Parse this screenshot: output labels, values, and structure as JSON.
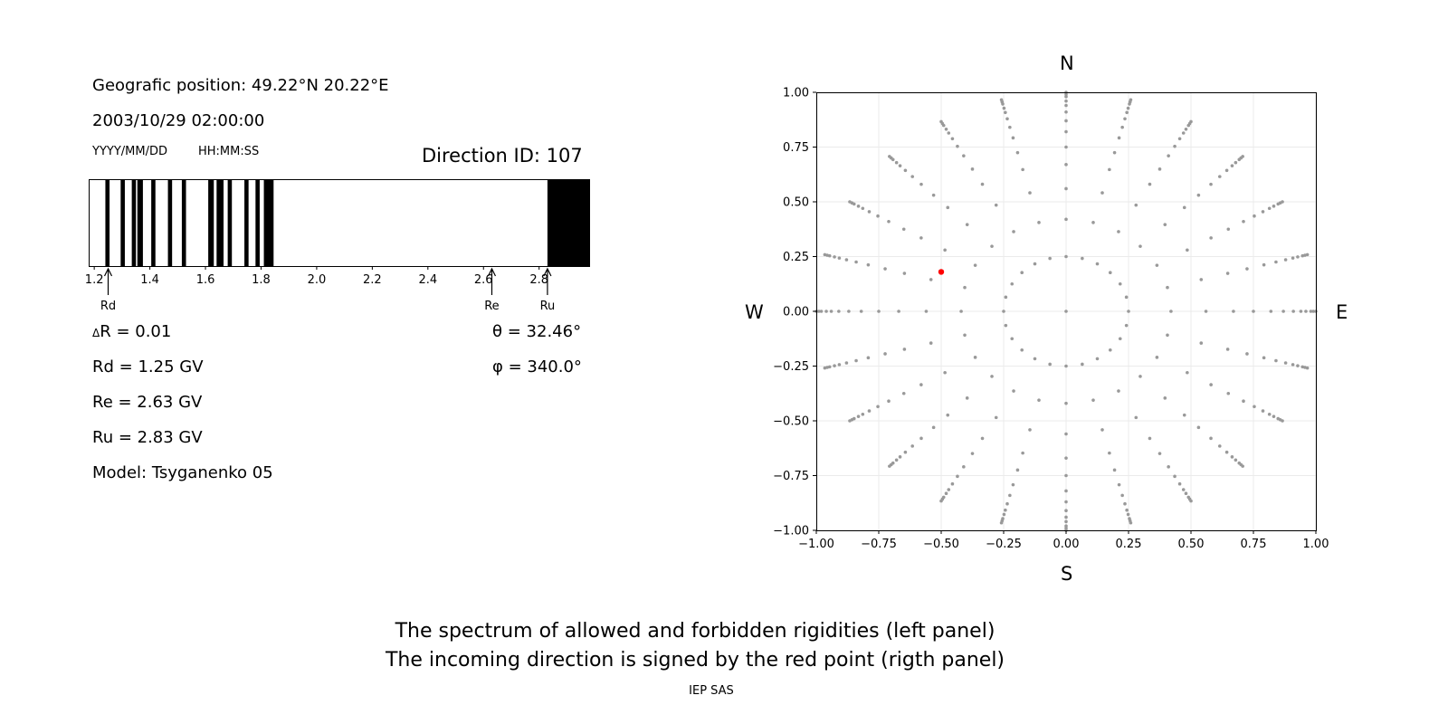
{
  "left_panel": {
    "position_line": "Geografic position: 49.22°N 20.22°E",
    "datetime": "2003/10/29 02:00:00",
    "date_format": "YYYY/MM/DD",
    "time_format": "HH:MM:SS",
    "direction_id": "Direction ID: 107",
    "delta_r": "R = 0.01",
    "delta_symbol": "Δ",
    "rd": "Rd = 1.25 GV",
    "re": "Re = 2.63 GV",
    "ru": "Ru = 2.83 GV",
    "model": "Model: Tsyganenko 05",
    "theta": "θ = 32.46°",
    "phi": "φ = 340.0°",
    "markers": {
      "rd": "Rd",
      "re": "Re",
      "ru": "Ru"
    }
  },
  "right_panel": {
    "compass": {
      "n": "N",
      "s": "S",
      "e": "E",
      "w": "W"
    }
  },
  "footer": {
    "line1": "The spectrum of allowed and forbidden rigidities (left panel)",
    "line2": "The incoming direction is signed by the red point (rigth panel)",
    "credit": "IEP SAS"
  },
  "chart_data": [
    {
      "type": "bar",
      "description_role": "rigidity spectrum (black = forbidden, white = allowed)",
      "xlim": [
        1.18,
        2.98
      ],
      "xticks": [
        1.2,
        1.4,
        1.6,
        1.8,
        2.0,
        2.2,
        2.4,
        2.6,
        2.8
      ],
      "forbidden_bands": [
        [
          1.24,
          1.255
        ],
        [
          1.295,
          1.31
        ],
        [
          1.335,
          1.35
        ],
        [
          1.355,
          1.375
        ],
        [
          1.405,
          1.42
        ],
        [
          1.465,
          1.48
        ],
        [
          1.515,
          1.53
        ],
        [
          1.61,
          1.63
        ],
        [
          1.64,
          1.665
        ],
        [
          1.68,
          1.695
        ],
        [
          1.74,
          1.755
        ],
        [
          1.78,
          1.795
        ],
        [
          1.81,
          1.845
        ],
        [
          2.83,
          2.98
        ]
      ],
      "markers": {
        "Rd": 1.25,
        "Re": 2.63,
        "Ru": 2.83
      },
      "colors": {
        "forbidden": "#000000",
        "allowed": "#ffffff"
      }
    },
    {
      "type": "scatter",
      "xlim": [
        -1.0,
        1.0
      ],
      "ylim": [
        -1.0,
        1.0
      ],
      "xticks": [
        -1.0,
        -0.75,
        -0.5,
        -0.25,
        0.0,
        0.25,
        0.5,
        0.75,
        1.0
      ],
      "yticks": [
        -1.0,
        -0.75,
        -0.5,
        -0.25,
        0.0,
        0.25,
        0.5,
        0.75,
        1.0
      ],
      "grid": true,
      "grid_spec": {
        "ring_radii": [
          0.25,
          0.42,
          0.56,
          0.67,
          0.75,
          0.82,
          0.87,
          0.91,
          0.94,
          0.96,
          0.98,
          0.99,
          1.0
        ],
        "azimuth_step_deg": 15
      },
      "highlight_point": {
        "x": -0.5,
        "y": 0.18
      },
      "colors": {
        "points": "#999999",
        "highlight": "#ff0000"
      }
    }
  ]
}
